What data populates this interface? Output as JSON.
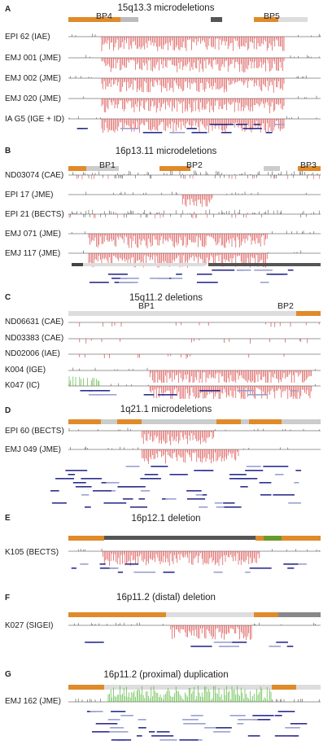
{
  "figure": {
    "panels": [
      {
        "label": "A",
        "title": "15q13.3 microdeletions",
        "breakpoints": [
          "BP4",
          "BP5"
        ],
        "samples": [
          "EPI 62  (IAE)",
          "EMJ 001 (JME)",
          "EMJ 002 (JME)",
          "EMJ 020 (JME)",
          "IA G5  (IGE + ID)"
        ]
      },
      {
        "label": "B",
        "title": "16p13.11 microdeletions",
        "breakpoints": [
          "BP1",
          "BP2",
          "BP3"
        ],
        "samples": [
          "ND03074 (CAE)",
          "EPI 17 (JME)",
          "EPI 21 (BECTS)",
          "EMJ 071 (JME)",
          "EMJ 117 (JME)"
        ]
      },
      {
        "label": "C",
        "title": "15q11.2 deletions",
        "breakpoints": [
          "BP1",
          "BP2"
        ],
        "samples": [
          "ND06631 (CAE)",
          "ND03383 (CAE)",
          "ND02006 (IAE)",
          "K004 (IGE)",
          "K047 (IC)"
        ]
      },
      {
        "label": "D",
        "title": "1q21.1 microdeletions",
        "breakpoints": [],
        "samples": [
          "EPI 60 (BECTS)",
          "EMJ 049 (JME)"
        ]
      },
      {
        "label": "E",
        "title": "16p12.1 deletion",
        "breakpoints": [],
        "samples": [
          "K105 (BECTS)"
        ]
      },
      {
        "label": "F",
        "title": "16p11.2 (distal) deletion",
        "breakpoints": [],
        "samples": [
          "K027 (SIGEI)"
        ]
      },
      {
        "label": "G",
        "title": "16p11.2 (proximal) duplication",
        "breakpoints": [],
        "samples": [
          "EMJ 162 (JME)"
        ]
      }
    ],
    "colors": {
      "deletion": "#d62b2b",
      "duplication": "#3fae1f",
      "baseline": "#333333",
      "segdup": "#e08a2a",
      "gene": "#2b2f8f"
    }
  }
}
